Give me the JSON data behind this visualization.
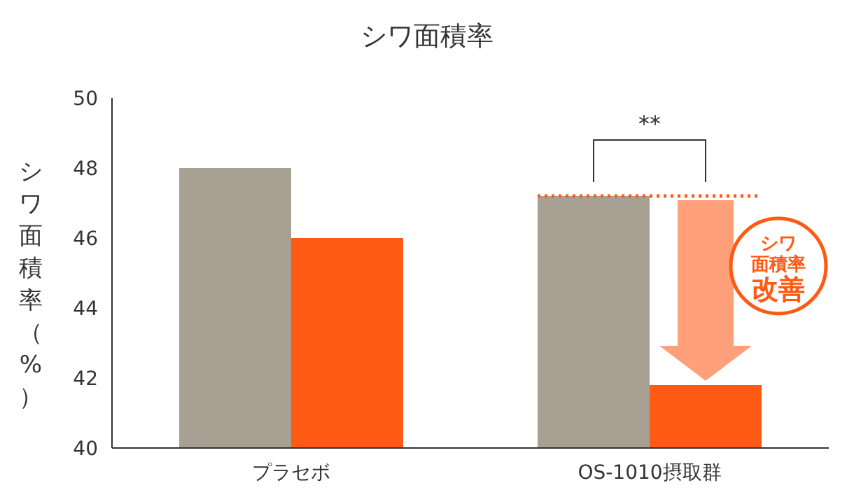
{
  "chart_data": {
    "type": "bar",
    "title": "シワ面積率",
    "ylabel": "シワ面積率（%）",
    "categories": [
      "プラセボ",
      "OS-1010摂取群"
    ],
    "series": [
      {
        "color": "#a8a092",
        "values": [
          48,
          47.2
        ]
      },
      {
        "color": "#ff5a14",
        "values": [
          46,
          41.8
        ]
      }
    ],
    "ylim": [
      40,
      50
    ],
    "yticks": [
      40,
      42,
      44,
      46,
      48,
      50
    ],
    "grid": false,
    "ref_lines": [
      {
        "axis": "y",
        "value": 47.2,
        "color": "#ff5a14",
        "line_style": "dotted"
      }
    ],
    "annotations": [
      "**",
      "シワ面積率改善"
    ]
  }
}
